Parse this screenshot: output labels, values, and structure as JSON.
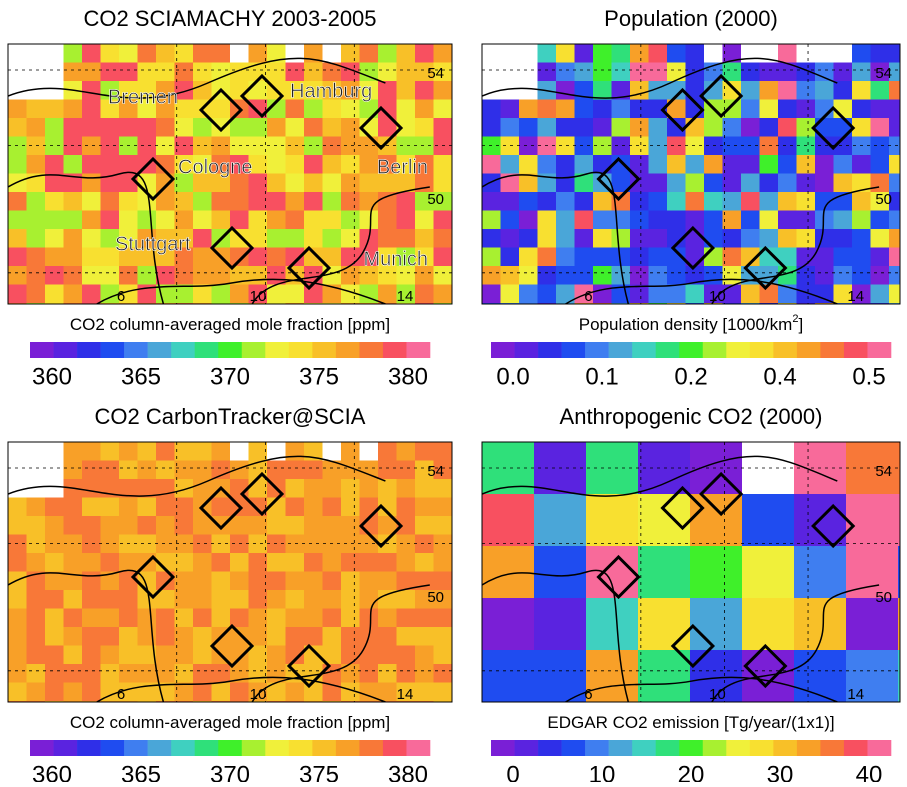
{
  "colorbar_colors": [
    "#7a1fd6",
    "#5a23e0",
    "#2f2fe8",
    "#1f4cf0",
    "#3f7ef0",
    "#4aa6d8",
    "#3fd0c0",
    "#2fe07a",
    "#3ff02a",
    "#a8f030",
    "#f0f03a",
    "#f8e030",
    "#f8c028",
    "#f8a028",
    "#f87838",
    "#f85060",
    "#f86a9a"
  ],
  "panels": [
    {
      "title": "CO2 SCIAMACHY 2003-2005",
      "colorbar_label": "CO2 column-averaged mole fraction [ppm]",
      "ticks": [
        "360",
        "365",
        "370",
        "375",
        "380"
      ],
      "lat_labels": [
        "54",
        "50"
      ],
      "lon_labels": [
        "6",
        "10",
        "14"
      ],
      "cities": [
        "Bremen",
        "Hamburg",
        "Cologne",
        "Berlin",
        "Stuttgart",
        "Munich"
      ]
    },
    {
      "title": "Population (2000)",
      "colorbar_label": "Population density [1000/km",
      "colorbar_label_sup": "2",
      "colorbar_label_end": "]",
      "ticks": [
        "0.0",
        "0.1",
        "0.2",
        "0.4",
        "0.5"
      ],
      "lat_labels": [
        "54",
        "50"
      ],
      "lon_labels": [
        "6",
        "10",
        "14"
      ]
    },
    {
      "title": "CO2 CarbonTracker@SCIA",
      "colorbar_label": "CO2 column-averaged mole fraction [ppm]",
      "ticks": [
        "360",
        "365",
        "370",
        "375",
        "380"
      ],
      "lat_labels": [
        "54",
        "50"
      ],
      "lon_labels": [
        "6",
        "10",
        "14"
      ]
    },
    {
      "title": "Anthropogenic CO2 (2000)",
      "colorbar_label": "EDGAR CO2 emission [Tg/year/(1x1)]",
      "ticks": [
        "0",
        "10",
        "20",
        "30",
        "40"
      ],
      "lat_labels": [
        "54",
        "50"
      ],
      "lon_labels": [
        "6",
        "10",
        "14"
      ]
    }
  ]
}
